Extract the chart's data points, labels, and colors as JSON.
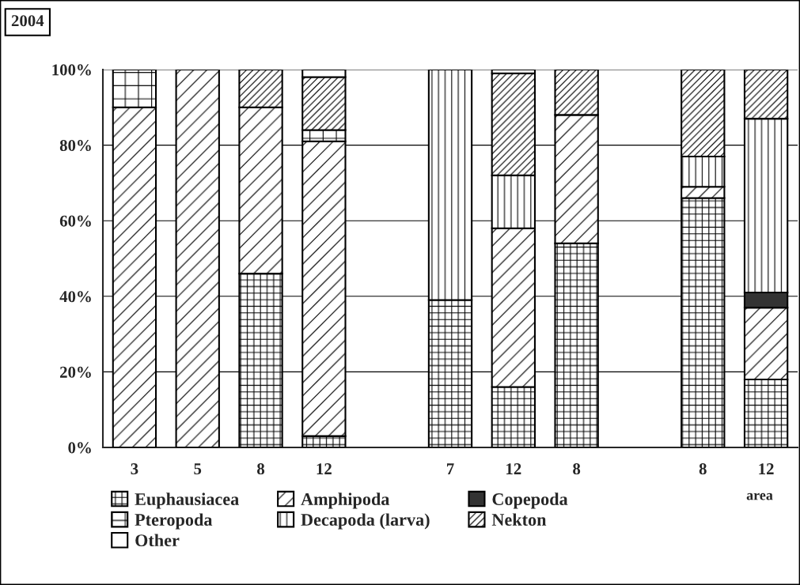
{
  "chart_data": {
    "type": "bar",
    "title": "2004",
    "stacked": true,
    "categories": [
      "3",
      "5",
      "8",
      "12",
      null,
      "7",
      "12",
      "8",
      null,
      "8",
      "12"
    ],
    "series": [
      {
        "name": "Euphausiacea",
        "color": "#000000",
        "values": [
          0,
          0,
          46,
          3,
          0,
          39,
          16,
          54,
          0,
          66,
          18
        ]
      },
      {
        "name": "Amphipoda",
        "color": "#000000",
        "values": [
          90,
          100,
          44,
          78,
          0,
          0,
          42,
          34,
          0,
          3,
          19
        ]
      },
      {
        "name": "Copepoda",
        "color": "#333333",
        "values": [
          0,
          0,
          0,
          0,
          0,
          0,
          0,
          0,
          0,
          0,
          4
        ]
      },
      {
        "name": "Pteropoda",
        "color": "#000000",
        "values": [
          10,
          0,
          0,
          3,
          0,
          0,
          0,
          0,
          0,
          0,
          0
        ]
      },
      {
        "name": "Decapoda (larva)",
        "color": "#000000",
        "values": [
          0,
          0,
          0,
          0,
          0,
          61,
          14,
          0,
          0,
          8,
          46
        ]
      },
      {
        "name": "Nekton",
        "color": "#000000",
        "values": [
          0,
          0,
          10,
          14,
          0,
          0,
          27,
          12,
          0,
          23,
          13
        ]
      },
      {
        "name": "Other",
        "color": "#ffffff",
        "values": [
          0,
          0,
          0,
          2,
          0,
          0,
          1,
          0,
          0,
          0,
          0
        ]
      }
    ],
    "ylim": [
      0,
      100
    ],
    "yticks": [
      {
        "value": 0,
        "label": "0%"
      },
      {
        "value": 20,
        "label": "20%"
      },
      {
        "value": 40,
        "label": "40%"
      },
      {
        "value": 60,
        "label": "60%"
      },
      {
        "value": 80,
        "label": "80%"
      },
      {
        "value": 100,
        "label": "100%"
      }
    ],
    "grid": "y",
    "legend": "bottom",
    "annotations": [
      "area"
    ]
  }
}
